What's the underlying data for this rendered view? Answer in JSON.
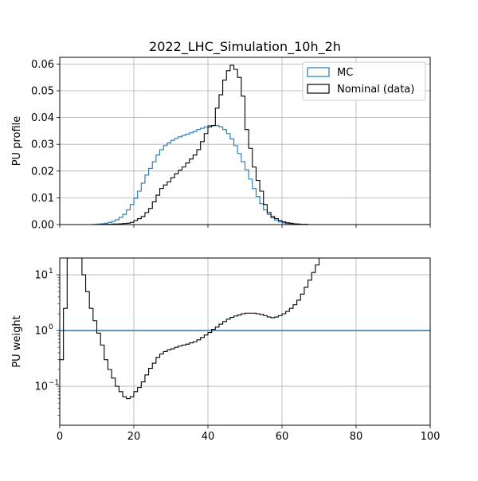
{
  "chart_data": [
    {
      "type": "step",
      "title": "2022_LHC_Simulation_10h_2h",
      "xlabel": "",
      "ylabel": "PU profile",
      "xlim": [
        0,
        100
      ],
      "ylim": [
        0,
        0.0625
      ],
      "grid": true,
      "legend": "top-right",
      "x_ticks": [
        "0",
        "20",
        "40",
        "60",
        "80",
        "100"
      ],
      "y_ticks": [
        {
          "value": 0.0,
          "label": "0.00"
        },
        {
          "value": 0.01,
          "label": "0.01"
        },
        {
          "value": 0.02,
          "label": "0.02"
        },
        {
          "value": 0.03,
          "label": "0.03"
        },
        {
          "value": 0.04,
          "label": "0.04"
        },
        {
          "value": 0.05,
          "label": "0.05"
        },
        {
          "value": 0.06,
          "label": "0.06"
        }
      ],
      "bin_edges_start": 0,
      "bin_width": 1,
      "series": [
        {
          "name": "MC",
          "color": "#1f77b4",
          "values": [
            0,
            0,
            0,
            0,
            0,
            0,
            0,
            0,
            0,
            0.0001,
            0.0002,
            0.0003,
            0.0005,
            0.0008,
            0.0012,
            0.0018,
            0.0027,
            0.0038,
            0.0055,
            0.0075,
            0.0098,
            0.0125,
            0.0155,
            0.0185,
            0.021,
            0.0235,
            0.026,
            0.028,
            0.0295,
            0.0305,
            0.0315,
            0.0322,
            0.0328,
            0.0333,
            0.0338,
            0.0343,
            0.0348,
            0.0355,
            0.036,
            0.0365,
            0.037,
            0.037,
            0.037,
            0.0365,
            0.0355,
            0.034,
            0.032,
            0.0295,
            0.0265,
            0.0235,
            0.0205,
            0.017,
            0.0135,
            0.0105,
            0.0078,
            0.0055,
            0.0038,
            0.0025,
            0.0016,
            0.001,
            0.0006,
            0.0004,
            0.0002,
            0.0001,
            0.0001,
            0,
            0,
            0,
            0,
            0,
            0,
            0,
            0,
            0,
            0,
            0,
            0,
            0,
            0,
            0,
            0,
            0,
            0,
            0,
            0,
            0,
            0,
            0,
            0,
            0,
            0,
            0,
            0,
            0,
            0,
            0,
            0,
            0,
            0,
            0
          ]
        },
        {
          "name": "Nominal (data)",
          "color": "#000000",
          "values": [
            0,
            0,
            0,
            0,
            0,
            0,
            0,
            0,
            0,
            0,
            0,
            0.0001,
            0.0001,
            0.0001,
            0.0002,
            0.0002,
            0.0003,
            0.0004,
            0.0005,
            0.0008,
            0.0015,
            0.0022,
            0.003,
            0.0045,
            0.006,
            0.0085,
            0.011,
            0.0135,
            0.0148,
            0.016,
            0.0175,
            0.019,
            0.0203,
            0.0215,
            0.023,
            0.0245,
            0.026,
            0.028,
            0.031,
            0.034,
            0.0365,
            0.037,
            0.0435,
            0.0485,
            0.054,
            0.0575,
            0.0595,
            0.058,
            0.055,
            0.048,
            0.0355,
            0.0285,
            0.0215,
            0.0165,
            0.0125,
            0.0075,
            0.0045,
            0.003,
            0.0022,
            0.0015,
            0.001,
            0.0007,
            0.0005,
            0.0003,
            0.0002,
            0.0001,
            0.0001,
            0,
            0,
            0,
            0,
            0,
            0,
            0,
            0,
            0,
            0,
            0,
            0,
            0,
            0,
            0,
            0,
            0,
            0,
            0,
            0,
            0,
            0,
            0,
            0,
            0,
            0,
            0,
            0,
            0,
            0,
            0,
            0,
            0,
            0,
            0
          ]
        }
      ]
    },
    {
      "type": "step",
      "title": "",
      "xlabel": "",
      "ylabel": "PU weight",
      "yscale": "log",
      "xlim": [
        0,
        100
      ],
      "ylim": [
        0.02,
        20
      ],
      "grid": true,
      "x_ticks": [
        "0",
        "20",
        "40",
        "60",
        "80",
        "100"
      ],
      "y_ticks": [
        {
          "value": 0.1,
          "base": "10",
          "exp": "−1"
        },
        {
          "value": 1,
          "base": "10",
          "exp": "0"
        },
        {
          "value": 10,
          "base": "10",
          "exp": "1"
        }
      ],
      "reference_line": {
        "y": 1,
        "color": "#1f77b4"
      },
      "bin_edges_start": 0,
      "bin_width": 1,
      "series": [
        {
          "name": "",
          "color": "#000000",
          "values": [
            0.3,
            2.5,
            20,
            20,
            20,
            20,
            10,
            5,
            2.5,
            1.5,
            0.9,
            0.55,
            0.3,
            0.2,
            0.14,
            0.1,
            0.08,
            0.065,
            0.06,
            0.065,
            0.08,
            0.095,
            0.12,
            0.16,
            0.21,
            0.26,
            0.33,
            0.38,
            0.42,
            0.45,
            0.47,
            0.5,
            0.53,
            0.55,
            0.57,
            0.6,
            0.63,
            0.68,
            0.75,
            0.83,
            0.92,
            1.05,
            1.15,
            1.3,
            1.45,
            1.6,
            1.72,
            1.82,
            1.9,
            2.0,
            2.05,
            2.05,
            2.05,
            2.0,
            1.95,
            1.85,
            1.75,
            1.7,
            1.75,
            1.85,
            2.0,
            2.2,
            2.5,
            2.9,
            3.5,
            4.5,
            6.0,
            8.0,
            11.0,
            15.0,
            20.0
          ]
        }
      ]
    }
  ]
}
